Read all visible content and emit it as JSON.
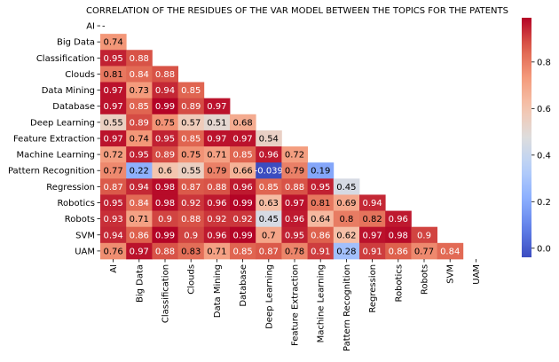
{
  "chart_data": {
    "type": "heatmap",
    "title": "CORRELATION OF THE RESIDUES OF THE VAR MODEL BETWEEN THE TOPICS FOR THE PATENTS",
    "labels": [
      "AI",
      "Big Data",
      "Classification",
      "Clouds",
      "Data Mining",
      "Database",
      "Deep Learning",
      "Feature Extraction",
      "Machine Learning",
      "Pattern Recognition",
      "Regression",
      "Robotics",
      "Robots",
      "SVM",
      "UAM"
    ],
    "values": [
      [],
      [
        "0.74"
      ],
      [
        "0.95",
        "0.88"
      ],
      [
        "0.81",
        "0.84",
        "0.88"
      ],
      [
        "0.97",
        "0.73",
        "0.94",
        "0.85"
      ],
      [
        "0.97",
        "0.85",
        "0.99",
        "0.89",
        "0.97"
      ],
      [
        "0.55",
        "0.89",
        "0.75",
        "0.57",
        "0.51",
        "0.68"
      ],
      [
        "0.97",
        "0.74",
        "0.95",
        "0.85",
        "0.97",
        "0.97",
        "0.54"
      ],
      [
        "0.72",
        "0.95",
        "0.89",
        "0.75",
        "0.71",
        "0.85",
        "0.96",
        "0.72"
      ],
      [
        "0.77",
        "0.22",
        "0.6",
        "0.55",
        "0.79",
        "0.66",
        "-0.039",
        "0.79",
        "0.19"
      ],
      [
        "0.87",
        "0.94",
        "0.98",
        "0.87",
        "0.88",
        "0.96",
        "0.85",
        "0.88",
        "0.95",
        "0.45"
      ],
      [
        "0.95",
        "0.84",
        "0.98",
        "0.92",
        "0.96",
        "0.99",
        "0.63",
        "0.97",
        "0.81",
        "0.69",
        "0.94"
      ],
      [
        "0.93",
        "0.71",
        "0.9",
        "0.88",
        "0.92",
        "0.92",
        "0.45",
        "0.96",
        "0.64",
        "0.8",
        "0.82",
        "0.96"
      ],
      [
        "0.94",
        "0.86",
        "0.99",
        "0.9",
        "0.96",
        "0.99",
        "0.7",
        "0.95",
        "0.86",
        "0.62",
        "0.97",
        "0.98",
        "0.9"
      ],
      [
        "0.76",
        "0.97",
        "0.88",
        "0.83",
        "0.71",
        "0.85",
        "0.87",
        "0.78",
        "0.91",
        "0.28",
        "0.91",
        "0.86",
        "0.77",
        "0.84"
      ]
    ],
    "diagonal_mask_label": "-",
    "colormap": "coolwarm",
    "vmin": -0.039,
    "vmax": 0.99,
    "colorbar_ticks": [
      "0.0",
      "0.2",
      "0.4",
      "0.6",
      "0.8"
    ]
  }
}
